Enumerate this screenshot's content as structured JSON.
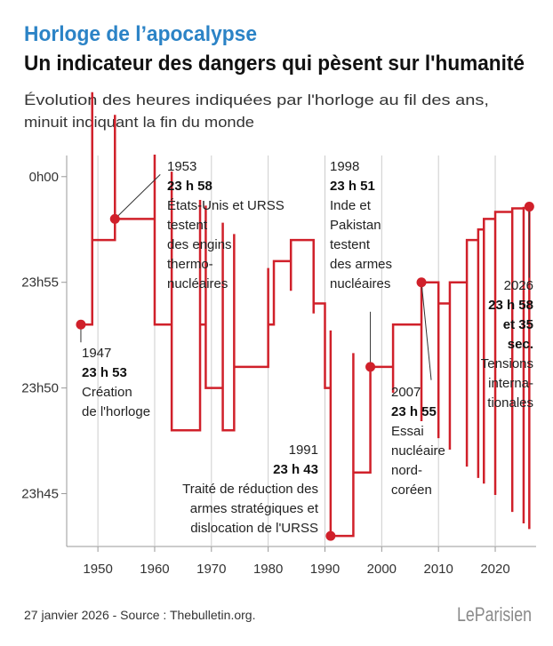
{
  "chart_data": {
    "type": "step-line",
    "title": "Horloge de l’apocalypse",
    "subtitle": "Un indicateur des dangers qui pèsent sur l'humanité",
    "description": [
      "Évolution des heures indiquées par l'horloge au fil des ans,",
      "minuit indiquant la fin du monde"
    ],
    "source": "27 janvier 2026 - Source : Thebulletin.org.",
    "logo": "LeParisien",
    "color": "#d0202a",
    "x": [
      1947,
      1949,
      1953,
      1960,
      1963,
      1968,
      1969,
      1972,
      1974,
      1980,
      1981,
      1984,
      1988,
      1990,
      1991,
      1995,
      1998,
      2002,
      2007,
      2010,
      2012,
      2015,
      2017,
      2018,
      2020,
      2023,
      2025,
      2026
    ],
    "values": [
      53,
      57,
      58,
      53,
      48,
      53,
      50,
      48,
      51,
      53,
      56,
      57,
      54,
      50,
      43,
      46,
      51,
      53,
      55,
      54,
      55,
      57,
      57.5,
      58,
      58.33,
      58.5,
      58.52,
      58.58
    ],
    "value_labels": [
      "23 h 53",
      null,
      "23 h 58",
      null,
      null,
      null,
      null,
      null,
      null,
      null,
      null,
      null,
      null,
      null,
      "23 h 43",
      null,
      "23 h 51",
      null,
      "23 h 55",
      null,
      null,
      null,
      null,
      null,
      null,
      null,
      null,
      [
        "23 h 58",
        "et 35",
        "sec."
      ]
    ],
    "notes": [
      [
        "Création",
        "de l'horloge"
      ],
      null,
      [
        "États-Unis et URSS",
        "testent",
        "des engins",
        "thermo-",
        "nucléaires"
      ],
      null,
      null,
      null,
      null,
      null,
      null,
      null,
      null,
      null,
      null,
      null,
      [
        "Traité de réduction des",
        "armes stratégiques et",
        "dislocation de l'URSS"
      ],
      null,
      [
        "Inde et",
        "Pakistan",
        "testent",
        "des armes",
        "nucléaires"
      ],
      null,
      [
        "Essai",
        "nucléaire",
        "nord-",
        "coréen"
      ],
      null,
      null,
      null,
      null,
      null,
      null,
      null,
      null,
      [
        "Tensions",
        "interna-",
        "tionales"
      ]
    ],
    "xlim": [
      1944.5,
      2027.2
    ],
    "xticks": [
      1950,
      1960,
      1970,
      1980,
      1990,
      2000,
      2010,
      2020
    ],
    "ylim": [
      42.5,
      61
    ],
    "yticks": [
      {
        "value": 60,
        "label": "0h00"
      },
      {
        "value": 55,
        "label": "23h55"
      },
      {
        "value": 50,
        "label": "23h50"
      },
      {
        "value": 45,
        "label": "23h45"
      }
    ],
    "grid": true
  }
}
